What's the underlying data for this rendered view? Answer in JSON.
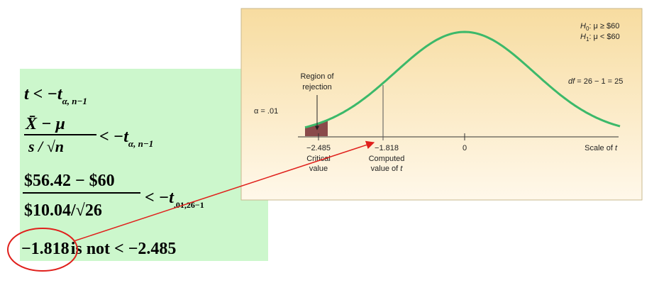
{
  "formula": {
    "line1": {
      "lhs": "t < −t",
      "sub": "α, n−1"
    },
    "line2": {
      "numerator": "X̄ − μ",
      "denominator": "s / √n",
      "rhs": "< −t",
      "sub": "α, n−1"
    },
    "line3": {
      "numerator": "$56.42 − $60",
      "denominator": "$10.04/√26",
      "rhs": "< −t",
      "sub": ".01,26−1"
    },
    "line4": {
      "value": "−1.818",
      "text": "is not < −2.485"
    }
  },
  "figure": {
    "hypotheses": [
      {
        "symbol": "H",
        "sub": "0",
        "text": ": μ ≥ $60"
      },
      {
        "symbol": "H",
        "sub": "1",
        "text": ": μ < $60"
      }
    ],
    "df": {
      "symbol": "df",
      "text": " = 26 − 1 = 25"
    },
    "region": [
      "Region of",
      "rejection"
    ],
    "alpha": "α = .01",
    "ticks": [
      "−2.485",
      "−1.818",
      "0"
    ],
    "scale": {
      "text": "Scale of ",
      "symbol": "t"
    },
    "critical": [
      "Critical",
      "value"
    ],
    "computed": [
      "Computed",
      "value of ",
      "t"
    ]
  }
}
